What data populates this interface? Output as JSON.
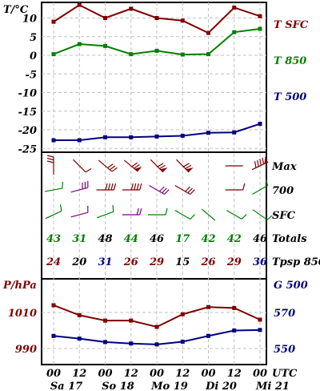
{
  "chart_data": [
    {
      "type": "line",
      "panel": "temperature",
      "ylabel": "T/°C",
      "ylim": [
        -28,
        16
      ],
      "yticks": [
        10,
        5,
        0,
        -5,
        -10,
        -15,
        -20,
        -25
      ],
      "x": [
        "00",
        "12",
        "00",
        "12",
        "00",
        "12",
        "00",
        "12",
        "00"
      ],
      "series": [
        {
          "name": "T SFC",
          "color": "#800000",
          "values": [
            9,
            13.5,
            10,
            12.5,
            10,
            9.3,
            6,
            12.8,
            10.5
          ]
        },
        {
          "name": "T 850",
          "color": "#008000",
          "values": [
            0.3,
            3,
            2.5,
            0.3,
            1.2,
            0.2,
            0.3,
            6.2,
            7.1
          ]
        },
        {
          "name": "T 500",
          "color": "#000080",
          "values": [
            -22.8,
            -22.8,
            -22,
            -22,
            -21.8,
            -21.6,
            -20.8,
            -20.7,
            -18.4
          ]
        }
      ]
    },
    {
      "type": "table",
      "panel": "winds-and-indices",
      "rows": [
        {
          "label": "Max",
          "kind": "wind",
          "color": "#800000"
        },
        {
          "label": "700",
          "kind": "wind",
          "color": "#008000"
        },
        {
          "label": "SFC",
          "kind": "wind",
          "color": "#008000"
        },
        {
          "label": "Totals",
          "kind": "values",
          "values": [
            "43",
            "31",
            "48",
            "44",
            "46",
            "17",
            "42",
            "42",
            "46"
          ],
          "colors": [
            "#008000",
            "#008000",
            "#000000",
            "#008000",
            "#000000",
            "#008000",
            "#008000",
            "#008000",
            "#000000"
          ]
        },
        {
          "label": "Tpsp 850",
          "kind": "values",
          "values": [
            "24",
            "20",
            "31",
            "26",
            "29",
            "15",
            "26",
            "29",
            "36"
          ],
          "colors": [
            "#800000",
            "#000000",
            "#000080",
            "#800000",
            "#800000",
            "#000000",
            "#800000",
            "#800000",
            "#000080"
          ]
        }
      ]
    },
    {
      "type": "line",
      "panel": "pressure-geopotential",
      "ylabel": "P/hPa",
      "ylabel_right": "G 500",
      "ylim": [
        980,
        1025
      ],
      "yticks": [
        1010,
        990
      ],
      "ylim_right": [
        538,
        592
      ],
      "yticks_right": [
        570,
        550
      ],
      "x": [
        "00",
        "12",
        "00",
        "12",
        "00",
        "12",
        "00",
        "12",
        "00"
      ],
      "series": [
        {
          "name": "P",
          "color": "#800000",
          "values": [
            1014,
            1008.5,
            1005.5,
            1005.5,
            1002,
            1009,
            1013,
            1012.5,
            1006
          ]
        },
        {
          "name": "G 500",
          "color": "#000080",
          "values": [
            557,
            555.5,
            553.6,
            552.8,
            552.3,
            553.8,
            557,
            560,
            560.3
          ]
        }
      ]
    }
  ],
  "time_axis": {
    "unit": "UTC",
    "hours": [
      "00",
      "12",
      "00",
      "12",
      "00",
      "12",
      "00",
      "12",
      "00"
    ],
    "days": [
      "Sa 17",
      "So 18",
      "Mo 19",
      "Di 20",
      "Mi 21"
    ]
  },
  "colors": {
    "frame": "#000000",
    "grid": "#c0c0c0",
    "dark_red": "#800000",
    "green": "#008000",
    "navy": "#000080",
    "purple": "#800080"
  }
}
